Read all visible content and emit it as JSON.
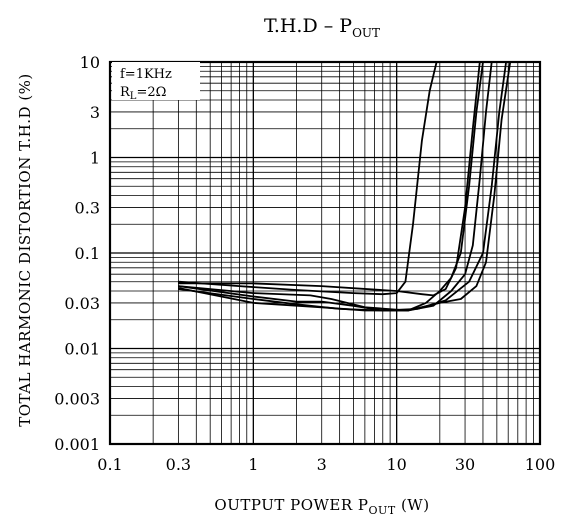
{
  "chart_data": {
    "type": "line",
    "title": {
      "main": "T.H.D  –  P",
      "sub": "OUT"
    },
    "xlabel": {
      "main": "OUTPUT POWER P",
      "sub": "OUT",
      "unit": " (W)"
    },
    "ylabel": "TOTAL HARMONIC DISTORTION T.H.D (%)",
    "xscale": "log",
    "yscale": "log",
    "xlim": [
      0.1,
      100
    ],
    "ylim": [
      0.001,
      10
    ],
    "xticks": [
      {
        "v": 0.1,
        "label": "0.1"
      },
      {
        "v": 0.3,
        "label": "0.3"
      },
      {
        "v": 1,
        "label": "1"
      },
      {
        "v": 3,
        "label": "3"
      },
      {
        "v": 10,
        "label": "10"
      },
      {
        "v": 30,
        "label": "30"
      },
      {
        "v": 100,
        "label": "100"
      }
    ],
    "yticks": [
      {
        "v": 10,
        "label": "10"
      },
      {
        "v": 3,
        "label": "3"
      },
      {
        "v": 1,
        "label": "1"
      },
      {
        "v": 0.3,
        "label": "0.3"
      },
      {
        "v": 0.1,
        "label": "0.1"
      },
      {
        "v": 0.03,
        "label": "0.03"
      },
      {
        "v": 0.01,
        "label": "0.01"
      },
      {
        "v": 0.003,
        "label": "0.003"
      },
      {
        "v": 0.001,
        "label": "0.001"
      }
    ],
    "grid": true,
    "conditions": {
      "line1": "f=1KHz",
      "line2_main": "R",
      "line2_sub": "L",
      "line2_rest": "=2Ω"
    },
    "series": [
      {
        "x": [
          0.3,
          0.8,
          2,
          5,
          8,
          10,
          11.5,
          13,
          15,
          17,
          19
        ],
        "y": [
          0.05,
          0.045,
          0.041,
          0.038,
          0.037,
          0.038,
          0.05,
          0.2,
          1.5,
          5,
          10
        ]
      },
      {
        "x": [
          0.3,
          1,
          3,
          10,
          15,
          18,
          22,
          26,
          30,
          34,
          38
        ],
        "y": [
          0.048,
          0.048,
          0.045,
          0.04,
          0.037,
          0.036,
          0.042,
          0.07,
          0.3,
          2,
          10
        ]
      },
      {
        "x": [
          0.3,
          1,
          2,
          3,
          5,
          8,
          12,
          16,
          20,
          24,
          28,
          32,
          36,
          40
        ],
        "y": [
          0.045,
          0.035,
          0.031,
          0.031,
          0.028,
          0.025,
          0.025,
          0.03,
          0.04,
          0.055,
          0.1,
          0.5,
          3,
          10
        ]
      },
      {
        "x": [
          0.3,
          1,
          2.5,
          3.5,
          6,
          12,
          18,
          24,
          30,
          34,
          38,
          42,
          46
        ],
        "y": [
          0.045,
          0.038,
          0.036,
          0.033,
          0.027,
          0.025,
          0.028,
          0.04,
          0.06,
          0.12,
          0.6,
          3,
          10
        ]
      },
      {
        "x": [
          0.3,
          1,
          3,
          6,
          12,
          20,
          28,
          36,
          42,
          48,
          54,
          62
        ],
        "y": [
          0.043,
          0.03,
          0.027,
          0.025,
          0.025,
          0.03,
          0.033,
          0.045,
          0.08,
          0.4,
          2.5,
          10
        ]
      },
      {
        "x": [
          0.3,
          1,
          2,
          4,
          8,
          14,
          22,
          32,
          40,
          46,
          52,
          58
        ],
        "y": [
          0.042,
          0.033,
          0.029,
          0.026,
          0.025,
          0.026,
          0.032,
          0.05,
          0.1,
          0.5,
          3,
          10
        ]
      }
    ]
  }
}
